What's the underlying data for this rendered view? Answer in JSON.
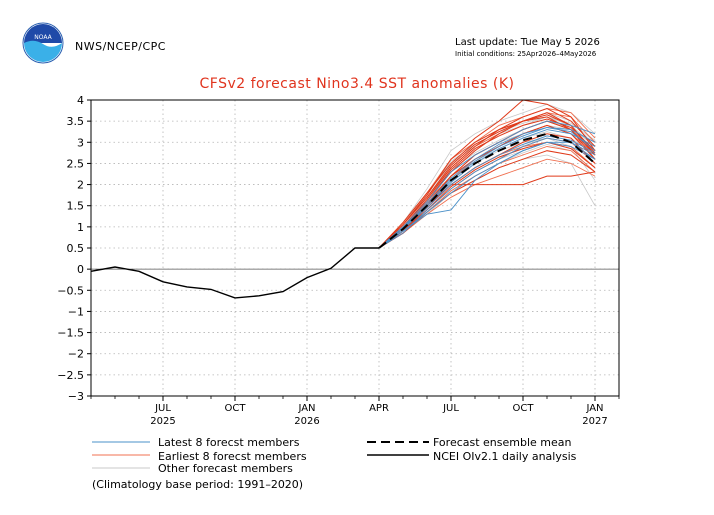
{
  "header": {
    "agency": "NWS/NCEP/CPC",
    "last_update": "Last update: Tue May 5 2026",
    "initial_conditions": "Initial conditions: 25Apr2026–4May2026",
    "logo_text": "NOAA"
  },
  "colors": {
    "title": "#e0341e",
    "latest": "#4a90c8",
    "earliest": "#f07050",
    "other": "#c8c8c8",
    "red_member": "#e03a1a",
    "mean": "#000000",
    "analysis": "#000000",
    "logo_blue": "#1f4aa8",
    "logo_cyan": "#3ab0e8"
  },
  "footnote": "(Climatology base period: 1991–2020)",
  "chart_data": {
    "type": "line",
    "title": "CFSv2 forecast Nino3.4 SST anomalies (K)",
    "ylim": [
      -3,
      4
    ],
    "yticks": [
      "4",
      "3.5",
      "3",
      "2.5",
      "2",
      "1.5",
      "1",
      "0.5",
      "0",
      "−0.5",
      "−1",
      "−1.5",
      "−2",
      "−2.5",
      "−3"
    ],
    "ytick_values": [
      4,
      3.5,
      3,
      2.5,
      2,
      1.5,
      1,
      0.5,
      0,
      -0.5,
      -1,
      -1.5,
      -2,
      -2.5,
      -3
    ],
    "x_months": [
      "2025-04",
      "2025-05",
      "2025-06",
      "2025-07",
      "2025-08",
      "2025-09",
      "2025-10",
      "2025-11",
      "2025-12",
      "2026-01",
      "2026-02",
      "2026-03",
      "2026-04",
      "2026-05",
      "2026-06",
      "2026-07",
      "2026-08",
      "2026-09",
      "2026-10",
      "2026-11",
      "2026-12",
      "2027-01",
      "2027-02"
    ],
    "xticks": [
      {
        "month": "2025-07",
        "label": "JUL",
        "year": "2025"
      },
      {
        "month": "2025-10",
        "label": "OCT",
        "year": ""
      },
      {
        "month": "2026-01",
        "label": "JAN",
        "year": "2026"
      },
      {
        "month": "2026-04",
        "label": "APR",
        "year": ""
      },
      {
        "month": "2026-07",
        "label": "JUL",
        "year": ""
      },
      {
        "month": "2026-10",
        "label": "OCT",
        "year": ""
      },
      {
        "month": "2027-01",
        "label": "JAN",
        "year": "2027"
      }
    ],
    "grid": true,
    "zero_line": true,
    "legend": [
      {
        "label": "Latest 8 forecst members",
        "style": "latest"
      },
      {
        "label": "Earliest 8 forecst members",
        "style": "earliest"
      },
      {
        "label": "Other forecast members",
        "style": "other"
      },
      {
        "label": "Forecast ensemble mean",
        "style": "mean"
      },
      {
        "label": "NCEI OIv2.1 daily analysis",
        "style": "analysis"
      }
    ],
    "analysis": {
      "name": "NCEI OIv2.1 daily analysis",
      "x": [
        "2025-04",
        "2025-05",
        "2025-06",
        "2025-07",
        "2025-08",
        "2025-09",
        "2025-10",
        "2025-11",
        "2025-12",
        "2026-01",
        "2026-02",
        "2026-03",
        "2026-04"
      ],
      "values": [
        -0.05,
        0.05,
        -0.05,
        -0.3,
        -0.42,
        -0.48,
        -0.68,
        -0.63,
        -0.53,
        -0.2,
        0.02,
        0.5,
        0.5
      ]
    },
    "forecast_x": [
      "2026-04",
      "2026-05",
      "2026-06",
      "2026-07",
      "2026-08",
      "2026-09",
      "2026-10",
      "2026-11",
      "2026-12",
      "2027-01"
    ],
    "ensemble_mean": {
      "name": "Forecast ensemble mean",
      "values": [
        0.5,
        0.95,
        1.5,
        2.1,
        2.5,
        2.8,
        3.05,
        3.2,
        3.0,
        2.5
      ]
    },
    "latest_members": [
      [
        0.5,
        0.95,
        1.55,
        2.15,
        2.6,
        2.95,
        3.2,
        3.35,
        3.25,
        2.8
      ],
      [
        0.5,
        0.9,
        1.3,
        1.4,
        2.1,
        2.5,
        2.8,
        3.0,
        3.0,
        2.6
      ],
      [
        0.5,
        1.0,
        1.6,
        2.3,
        2.7,
        3.0,
        3.3,
        3.5,
        3.4,
        3.2
      ],
      [
        0.5,
        0.85,
        1.4,
        1.9,
        2.3,
        2.6,
        2.9,
        3.1,
        3.0,
        2.7
      ],
      [
        0.5,
        0.95,
        1.45,
        2.0,
        2.4,
        2.7,
        2.95,
        3.15,
        3.05,
        2.75
      ],
      [
        0.5,
        1.0,
        1.5,
        2.05,
        2.5,
        2.85,
        3.1,
        3.3,
        3.2,
        2.9
      ],
      [
        0.5,
        0.9,
        1.35,
        1.8,
        2.2,
        2.5,
        2.8,
        3.0,
        2.9,
        2.6
      ],
      [
        0.5,
        0.95,
        1.5,
        2.1,
        2.55,
        2.9,
        3.15,
        3.35,
        3.3,
        3.0
      ]
    ],
    "earliest_members": [
      [
        0.5,
        1.1,
        1.8,
        2.6,
        3.0,
        3.4,
        3.6,
        3.8,
        3.7,
        3.1
      ],
      [
        0.5,
        0.9,
        1.4,
        1.9,
        2.3,
        2.6,
        2.9,
        3.0,
        2.9,
        2.4
      ],
      [
        0.5,
        1.0,
        1.6,
        2.2,
        2.7,
        3.0,
        3.3,
        3.5,
        3.3,
        2.8
      ],
      [
        0.5,
        0.85,
        1.3,
        1.7,
        2.0,
        2.2,
        2.4,
        2.6,
        2.5,
        2.2
      ],
      [
        0.5,
        1.05,
        1.7,
        2.4,
        2.9,
        3.2,
        3.5,
        3.7,
        3.6,
        3.0
      ],
      [
        0.5,
        0.95,
        1.45,
        2.0,
        2.4,
        2.7,
        2.9,
        3.1,
        3.0,
        2.5
      ],
      [
        0.5,
        1.0,
        1.55,
        2.1,
        2.6,
        2.9,
        3.2,
        3.4,
        3.2,
        2.7
      ],
      [
        0.5,
        0.9,
        1.35,
        1.85,
        2.2,
        2.5,
        2.7,
        2.9,
        2.8,
        2.3
      ]
    ],
    "red_members": [
      [
        0.5,
        1.05,
        1.75,
        2.6,
        3.1,
        3.5,
        4.0,
        3.9,
        3.6,
        2.8
      ],
      [
        0.5,
        0.9,
        1.5,
        2.0,
        2.0,
        2.0,
        2.0,
        2.2,
        2.2,
        2.3
      ],
      [
        0.5,
        1.0,
        1.6,
        2.3,
        2.8,
        3.2,
        3.5,
        3.7,
        3.4,
        2.7
      ],
      [
        0.5,
        0.95,
        1.5,
        2.2,
        2.6,
        2.9,
        3.2,
        3.4,
        3.2,
        2.6
      ],
      [
        0.5,
        1.0,
        1.65,
        2.4,
        2.9,
        3.3,
        3.6,
        3.8,
        3.5,
        2.9
      ],
      [
        0.5,
        0.85,
        1.35,
        1.8,
        2.1,
        2.4,
        2.6,
        2.8,
        2.7,
        2.3
      ],
      [
        0.5,
        1.1,
        1.8,
        2.5,
        3.0,
        3.3,
        3.5,
        3.6,
        3.3,
        2.6
      ],
      [
        0.5,
        0.9,
        1.45,
        2.0,
        2.4,
        2.7,
        3.0,
        3.2,
        3.1,
        2.5
      ],
      [
        0.5,
        0.95,
        1.55,
        2.2,
        2.7,
        3.0,
        3.3,
        3.5,
        3.3,
        2.7
      ],
      [
        0.5,
        1.0,
        1.6,
        2.35,
        2.85,
        3.15,
        3.4,
        3.55,
        3.35,
        2.8
      ],
      [
        0.5,
        0.9,
        1.4,
        1.95,
        2.35,
        2.65,
        2.85,
        3.0,
        2.85,
        2.4
      ],
      [
        0.5,
        1.05,
        1.7,
        2.45,
        2.95,
        3.25,
        3.5,
        3.65,
        3.4,
        2.75
      ]
    ],
    "other_members": [
      [
        0.5,
        1.1,
        1.9,
        2.8,
        3.2,
        3.5,
        3.7,
        3.9,
        3.7,
        3.2
      ],
      [
        0.5,
        0.85,
        1.3,
        1.8,
        2.1,
        2.4,
        2.6,
        2.7,
        2.5,
        1.5
      ],
      [
        0.5,
        1.0,
        1.7,
        2.5,
        2.9,
        3.2,
        3.4,
        3.6,
        3.4,
        2.9
      ],
      [
        0.5,
        0.95,
        1.5,
        2.1,
        2.5,
        2.8,
        3.0,
        3.1,
        2.9,
        2.1
      ],
      [
        0.5,
        1.05,
        1.8,
        2.6,
        3.0,
        3.3,
        3.5,
        3.7,
        3.5,
        3.0
      ],
      [
        0.5,
        0.9,
        1.4,
        1.9,
        2.3,
        2.6,
        2.8,
        3.0,
        2.9,
        2.4
      ],
      [
        0.5,
        1.0,
        1.6,
        2.3,
        2.7,
        3.0,
        3.2,
        3.4,
        3.3,
        2.8
      ],
      [
        0.5,
        0.95,
        1.45,
        2.0,
        2.4,
        2.7,
        2.95,
        3.1,
        3.0,
        2.6
      ],
      [
        0.5,
        1.0,
        1.65,
        2.35,
        2.75,
        3.05,
        3.3,
        3.5,
        3.35,
        2.9
      ],
      [
        0.5,
        0.9,
        1.35,
        1.85,
        2.2,
        2.5,
        2.75,
        2.95,
        2.8,
        2.3
      ],
      [
        0.5,
        1.05,
        1.75,
        2.55,
        2.95,
        3.25,
        3.45,
        3.6,
        3.45,
        3.05
      ],
      [
        0.5,
        0.95,
        1.5,
        2.15,
        2.55,
        2.85,
        3.1,
        3.25,
        3.1,
        2.7
      ]
    ]
  }
}
